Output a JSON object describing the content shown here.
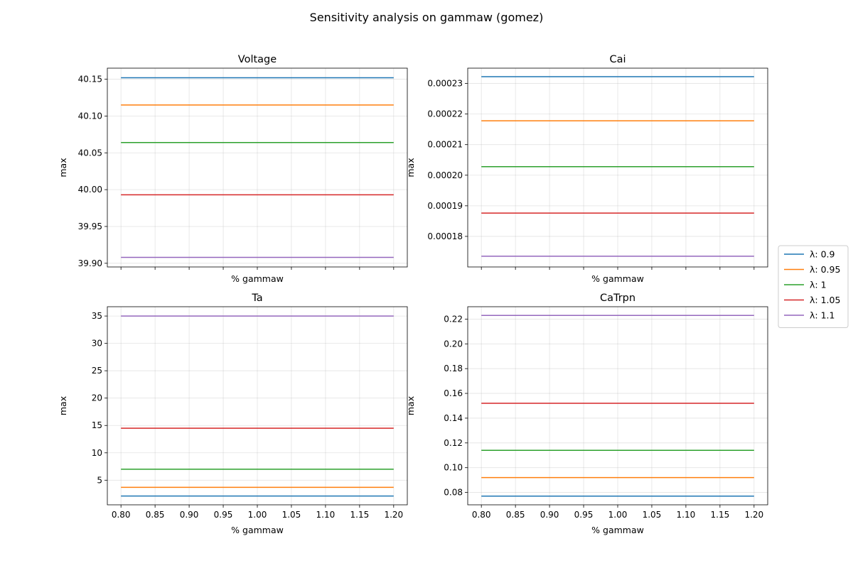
{
  "figure": {
    "suptitle": "Sensitivity analysis on gammaw (gomez)"
  },
  "legend": {
    "placement": "right-center"
  },
  "chart_data": [
    {
      "type": "line",
      "title": "Voltage",
      "xlabel": "% gammaw",
      "ylabel": "max",
      "x": [
        0.8,
        1.2
      ],
      "xlim": [
        0.78,
        1.22
      ],
      "ylim": [
        39.895,
        40.165
      ],
      "xticks": [
        0.8,
        0.85,
        0.9,
        0.95,
        1.0,
        1.05,
        1.1,
        1.15,
        1.2
      ],
      "xtick_labels_visible": false,
      "yticks": [
        39.9,
        39.95,
        40.0,
        40.05,
        40.1,
        40.15
      ],
      "ytick_labels": [
        "39.90",
        "39.95",
        "40.00",
        "40.05",
        "40.10",
        "40.15"
      ],
      "grid": true,
      "series": [
        {
          "name": "λ: 0.9",
          "color": "#1f77b4",
          "values": [
            40.152,
            40.152
          ]
        },
        {
          "name": "λ: 0.95",
          "color": "#ff7f0e",
          "values": [
            40.115,
            40.115
          ]
        },
        {
          "name": "λ: 1",
          "color": "#2ca02c",
          "values": [
            40.064,
            40.064
          ]
        },
        {
          "name": "λ: 1.05",
          "color": "#d62728",
          "values": [
            39.993,
            39.993
          ]
        },
        {
          "name": "λ: 1.1",
          "color": "#9467bd",
          "values": [
            39.908,
            39.908
          ]
        }
      ]
    },
    {
      "type": "line",
      "title": "Cai",
      "xlabel": "% gammaw",
      "ylabel": "max",
      "x": [
        0.8,
        1.2
      ],
      "xlim": [
        0.78,
        1.22
      ],
      "ylim": [
        0.00017,
        0.000235
      ],
      "xticks": [
        0.8,
        0.85,
        0.9,
        0.95,
        1.0,
        1.05,
        1.1,
        1.15,
        1.2
      ],
      "xtick_labels_visible": false,
      "yticks": [
        0.00018,
        0.00019,
        0.0002,
        0.00021,
        0.00022,
        0.00023
      ],
      "ytick_labels": [
        "0.00018",
        "0.00019",
        "0.00020",
        "0.00021",
        "0.00022",
        "0.00023"
      ],
      "grid": true,
      "series": [
        {
          "name": "λ: 0.9",
          "color": "#1f77b4",
          "values": [
            0.0002322,
            0.0002322
          ]
        },
        {
          "name": "λ: 0.95",
          "color": "#ff7f0e",
          "values": [
            0.0002178,
            0.0002178
          ]
        },
        {
          "name": "λ: 1",
          "color": "#2ca02c",
          "values": [
            0.0002028,
            0.0002028
          ]
        },
        {
          "name": "λ: 1.05",
          "color": "#d62728",
          "values": [
            0.0001876,
            0.0001876
          ]
        },
        {
          "name": "λ: 1.1",
          "color": "#9467bd",
          "values": [
            0.0001735,
            0.0001735
          ]
        }
      ]
    },
    {
      "type": "line",
      "title": "Ta",
      "xlabel": "% gammaw",
      "ylabel": "max",
      "x": [
        0.8,
        1.2
      ],
      "xlim": [
        0.78,
        1.22
      ],
      "ylim": [
        0.5,
        36.7
      ],
      "xticks": [
        0.8,
        0.85,
        0.9,
        0.95,
        1.0,
        1.05,
        1.1,
        1.15,
        1.2
      ],
      "xtick_labels_visible": true,
      "xtick_labels": [
        "0.80",
        "0.85",
        "0.90",
        "0.95",
        "1.00",
        "1.05",
        "1.10",
        "1.15",
        "1.20"
      ],
      "yticks": [
        5,
        10,
        15,
        20,
        25,
        30,
        35
      ],
      "ytick_labels": [
        "5",
        "10",
        "15",
        "20",
        "25",
        "30",
        "35"
      ],
      "grid": true,
      "series": [
        {
          "name": "λ: 0.9",
          "color": "#1f77b4",
          "values": [
            2.1,
            2.1
          ]
        },
        {
          "name": "λ: 0.95",
          "color": "#ff7f0e",
          "values": [
            3.7,
            3.7
          ]
        },
        {
          "name": "λ: 1",
          "color": "#2ca02c",
          "values": [
            7.0,
            7.0
          ]
        },
        {
          "name": "λ: 1.05",
          "color": "#d62728",
          "values": [
            14.5,
            14.5
          ]
        },
        {
          "name": "λ: 1.1",
          "color": "#9467bd",
          "values": [
            35.0,
            35.0
          ]
        }
      ]
    },
    {
      "type": "line",
      "title": "CaTrpn",
      "xlabel": "% gammaw",
      "ylabel": "max",
      "x": [
        0.8,
        1.2
      ],
      "xlim": [
        0.78,
        1.22
      ],
      "ylim": [
        0.07,
        0.23
      ],
      "xticks": [
        0.8,
        0.85,
        0.9,
        0.95,
        1.0,
        1.05,
        1.1,
        1.15,
        1.2
      ],
      "xtick_labels_visible": true,
      "xtick_labels": [
        "0.80",
        "0.85",
        "0.90",
        "0.95",
        "1.00",
        "1.05",
        "1.10",
        "1.15",
        "1.20"
      ],
      "yticks": [
        0.08,
        0.1,
        0.12,
        0.14,
        0.16,
        0.18,
        0.2,
        0.22
      ],
      "ytick_labels": [
        "0.08",
        "0.10",
        "0.12",
        "0.14",
        "0.16",
        "0.18",
        "0.20",
        "0.22"
      ],
      "grid": true,
      "series": [
        {
          "name": "λ: 0.9",
          "color": "#1f77b4",
          "values": [
            0.077,
            0.077
          ]
        },
        {
          "name": "λ: 0.95",
          "color": "#ff7f0e",
          "values": [
            0.092,
            0.092
          ]
        },
        {
          "name": "λ: 1",
          "color": "#2ca02c",
          "values": [
            0.114,
            0.114
          ]
        },
        {
          "name": "λ: 1.05",
          "color": "#d62728",
          "values": [
            0.152,
            0.152
          ]
        },
        {
          "name": "λ: 1.1",
          "color": "#9467bd",
          "values": [
            0.223,
            0.223
          ]
        }
      ]
    }
  ]
}
